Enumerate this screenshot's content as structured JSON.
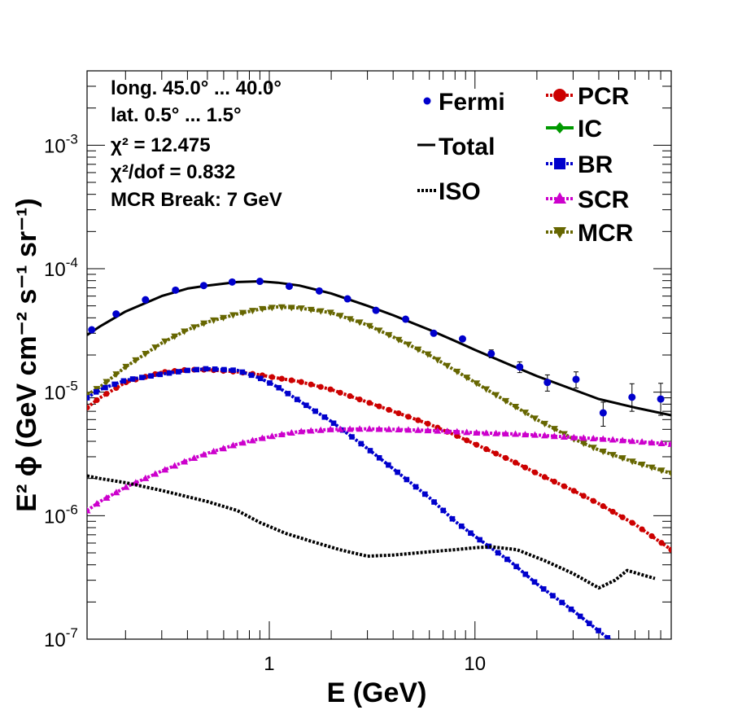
{
  "chart_data": {
    "type": "scatter",
    "xscale": "log",
    "yscale": "log",
    "xlim": [
      0.13,
      90
    ],
    "ylim": [
      1e-07,
      0.004
    ],
    "xlabel": "E (GeV)",
    "ylabel": "E² ϕ (GeV cm⁻² s⁻¹ sr⁻¹)",
    "xticks": [
      {
        "value": 1,
        "label": "1"
      },
      {
        "value": 10,
        "label": "10"
      }
    ],
    "yticks": [
      {
        "value": 1e-07,
        "base": "10",
        "exp": "-7"
      },
      {
        "value": 1e-06,
        "base": "10",
        "exp": "-6"
      },
      {
        "value": 1e-05,
        "base": "10",
        "exp": "-5"
      },
      {
        "value": 0.0001,
        "base": "10",
        "exp": "-4"
      },
      {
        "value": 0.001,
        "base": "10",
        "exp": "-3"
      }
    ],
    "info_lines": [
      "long. 45.0° ... 40.0°",
      "lat. 0.5° ... 1.5°",
      "χ² = 12.475",
      "χ²/dof = 0.832",
      "MCR Break:  7 GeV"
    ],
    "legend_left": [
      {
        "name": "Fermi",
        "style": "point"
      },
      {
        "name": "Total",
        "style": "solid"
      },
      {
        "name": "ISO",
        "style": "dotted"
      }
    ],
    "legend_right": [
      {
        "name": "PCR",
        "style": "circle"
      },
      {
        "name": "IC",
        "style": "diamond"
      },
      {
        "name": "BR",
        "style": "square"
      },
      {
        "name": "SCR",
        "style": "triangle-up"
      },
      {
        "name": "MCR",
        "style": "triangle-down"
      }
    ],
    "fermi": {
      "name": "Fermi",
      "color": "#0000cc",
      "x": [
        0.137,
        0.18,
        0.25,
        0.35,
        0.48,
        0.66,
        0.9,
        1.25,
        1.75,
        2.4,
        3.3,
        4.6,
        6.3,
        8.7,
        12,
        16.5,
        22.5,
        31,
        42,
        58,
        80
      ],
      "y": [
        3.2e-05,
        4.3e-05,
        5.6e-05,
        6.7e-05,
        7.3e-05,
        7.8e-05,
        7.9e-05,
        7.2e-05,
        6.6e-05,
        5.7e-05,
        4.6e-05,
        3.9e-05,
        3e-05,
        2.7e-05,
        2.05e-05,
        1.6e-05,
        1.2e-05,
        1.27e-05,
        6.8e-06,
        9.1e-06,
        8.8e-06
      ],
      "err_lo": [
        0,
        0,
        0,
        0,
        0,
        0,
        0,
        0,
        0,
        0,
        0,
        0,
        0,
        0,
        1.5e-06,
        1.6e-06,
        1.8e-06,
        1.9e-06,
        1.5e-06,
        2.1e-06,
        2.3e-06
      ],
      "err_hi": [
        0,
        0,
        0,
        0,
        0,
        0,
        0,
        0,
        0,
        0,
        0,
        0,
        0,
        0,
        1.5e-06,
        1.6e-06,
        1.8e-06,
        1.9e-06,
        1.5e-06,
        2.6e-06,
        3e-06
      ]
    },
    "curves": [
      {
        "name": "Total",
        "color": "#000000",
        "style": "solid",
        "marker": "none",
        "x": [
          0.13,
          0.15,
          0.2,
          0.3,
          0.4,
          0.5,
          0.7,
          0.9,
          1.1,
          1.4,
          2,
          3,
          4,
          6,
          8,
          10,
          15,
          20,
          30,
          40,
          60,
          90
        ],
        "y": [
          2.9e-05,
          3.4e-05,
          4.5e-05,
          6e-05,
          6.9e-05,
          7.3e-05,
          7.8e-05,
          7.9e-05,
          7.7e-05,
          7.3e-05,
          6.3e-05,
          5e-05,
          4.2e-05,
          3.2e-05,
          2.6e-05,
          2.2e-05,
          1.65e-05,
          1.35e-05,
          1.05e-05,
          8.8e-06,
          7.5e-06,
          6.5e-06
        ]
      },
      {
        "name": "MCR",
        "color": "#666600",
        "style": "dotted",
        "marker": "triangle-down",
        "x": [
          0.13,
          0.15,
          0.2,
          0.3,
          0.4,
          0.5,
          0.7,
          0.9,
          1.1,
          1.4,
          2,
          3,
          4,
          6,
          8,
          10,
          15,
          20,
          30,
          40,
          60,
          90
        ],
        "y": [
          9.5e-06,
          1.1e-05,
          1.6e-05,
          2.5e-05,
          3.2e-05,
          3.7e-05,
          4.3e-05,
          4.7e-05,
          4.9e-05,
          4.8e-05,
          4.4e-05,
          3.5e-05,
          2.8e-05,
          2e-05,
          1.5e-05,
          1.2e-05,
          8e-06,
          6e-06,
          4.2e-06,
          3.4e-06,
          2.7e-06,
          2.2e-06
        ]
      },
      {
        "name": "PCR",
        "color": "#cc0000",
        "style": "dotted",
        "marker": "circle",
        "x": [
          0.13,
          0.15,
          0.2,
          0.3,
          0.4,
          0.5,
          0.7,
          0.9,
          1.1,
          1.4,
          2,
          3,
          4,
          6,
          8,
          10,
          15,
          20,
          30,
          40,
          60,
          90
        ],
        "y": [
          7.5e-06,
          9e-06,
          1.2e-05,
          1.45e-05,
          1.52e-05,
          1.52e-05,
          1.46e-05,
          1.38e-05,
          1.3e-05,
          1.22e-05,
          1.05e-05,
          8.3e-06,
          7e-06,
          5.5e-06,
          4.5e-06,
          3.8e-06,
          2.8e-06,
          2.2e-06,
          1.6e-06,
          1.25e-06,
          8.5e-07,
          5.3e-07
        ]
      },
      {
        "name": "BR",
        "color": "#0000cc",
        "style": "dotted",
        "marker": "square",
        "x": [
          0.13,
          0.15,
          0.2,
          0.3,
          0.4,
          0.5,
          0.7,
          0.9,
          1.1,
          1.4,
          2,
          3,
          4,
          6,
          8,
          10,
          15,
          20,
          30,
          45,
          60
        ],
        "y": [
          9e-06,
          1.05e-05,
          1.25e-05,
          1.4e-05,
          1.5e-05,
          1.55e-05,
          1.5e-05,
          1.3e-05,
          1.1e-05,
          8.5e-06,
          5.8e-06,
          3.5e-06,
          2.4e-06,
          1.4e-06,
          9e-07,
          6.8e-07,
          4.2e-07,
          2.8e-07,
          1.7e-07,
          1e-07,
          7.5e-08
        ]
      },
      {
        "name": "SCR",
        "color": "#cc00cc",
        "style": "dotted",
        "marker": "triangle-up",
        "x": [
          0.13,
          0.15,
          0.2,
          0.3,
          0.4,
          0.5,
          0.7,
          0.9,
          1.1,
          1.4,
          2,
          3,
          4,
          6,
          8,
          10,
          15,
          20,
          30,
          40,
          60,
          90
        ],
        "y": [
          1.1e-06,
          1.3e-06,
          1.7e-06,
          2.3e-06,
          2.8e-06,
          3.2e-06,
          3.8e-06,
          4.2e-06,
          4.5e-06,
          4.8e-06,
          5e-06,
          5.05e-06,
          5e-06,
          4.9e-06,
          4.8e-06,
          4.7e-06,
          4.6e-06,
          4.5e-06,
          4.3e-06,
          4.2e-06,
          4e-06,
          3.8e-06
        ]
      },
      {
        "name": "ISO",
        "color": "#000000",
        "style": "dotted",
        "marker": "none",
        "x": [
          0.13,
          0.15,
          0.2,
          0.3,
          0.5,
          0.7,
          0.9,
          1.2,
          1.6,
          2.2,
          3,
          4,
          6,
          8,
          10,
          12,
          16,
          22,
          30,
          40,
          48,
          55,
          75
        ],
        "y": [
          2.1e-06,
          2e-06,
          1.85e-06,
          1.6e-06,
          1.3e-06,
          1.1e-06,
          8.8e-07,
          7.2e-07,
          6.2e-07,
          5.3e-07,
          4.7e-07,
          4.8e-07,
          5.1e-07,
          5.3e-07,
          5.5e-07,
          5.6e-07,
          5.3e-07,
          4.3e-07,
          3.4e-07,
          2.6e-07,
          3e-07,
          3.6e-07,
          3.1e-07
        ]
      }
    ]
  }
}
